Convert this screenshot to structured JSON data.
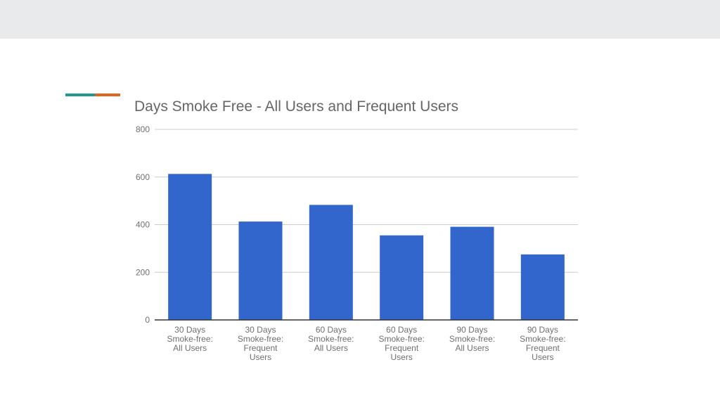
{
  "colors": {
    "accent_left": "#1f9a8c",
    "accent_right": "#e0641f",
    "bar": "#3366cc",
    "grid": "#cccccc",
    "axis": "#333333"
  },
  "chart_data": {
    "type": "bar",
    "title": "Days Smoke Free - All Users and Frequent Users",
    "xlabel": "",
    "ylabel": "",
    "ylim": [
      0,
      800
    ],
    "yticks": [
      0,
      200,
      400,
      600,
      800
    ],
    "grid": true,
    "legend": "none",
    "categories": [
      [
        "30 Days",
        "Smoke-free:",
        "All Users"
      ],
      [
        "30 Days",
        "Smoke-free:",
        "Frequent",
        "Users"
      ],
      [
        "60 Days",
        "Smoke-free:",
        "All Users"
      ],
      [
        "60 Days",
        "Smoke-free:",
        "Frequent",
        "Users"
      ],
      [
        "90 Days",
        "Smoke-free:",
        "All Users"
      ],
      [
        "90 Days",
        "Smoke-free:",
        "Frequent",
        "Users"
      ]
    ],
    "values": [
      613,
      413,
      483,
      355,
      391,
      275
    ]
  }
}
